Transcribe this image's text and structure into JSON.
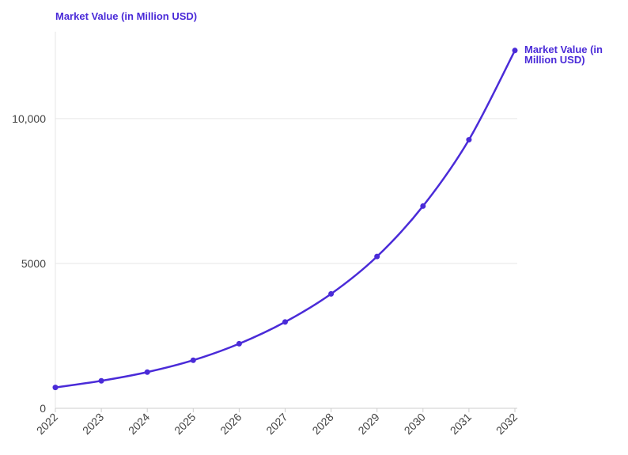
{
  "chart_data": {
    "type": "line",
    "title": "",
    "xlabel": "",
    "ylabel": "",
    "series_title": "Market Value (in Million USD)",
    "end_label_lines": [
      "Market Value (in",
      "Million USD)"
    ],
    "x": [
      "2022",
      "2023",
      "2024",
      "2025",
      "2026",
      "2027",
      "2028",
      "2029",
      "2030",
      "2031",
      "2032"
    ],
    "series": [
      {
        "name": "Market Value (in Million USD)",
        "values": [
          720,
          950,
          1250,
          1660,
          2230,
          2980,
          3950,
          5240,
          6980,
          9270,
          12350
        ]
      }
    ],
    "ylim": [
      0,
      13000
    ],
    "yticks": [
      0,
      5000,
      10000
    ],
    "ytick_labels": [
      "0",
      "5000",
      "10,000"
    ],
    "grid": true,
    "legend": "none",
    "colors": {
      "line": "#4a2bd8",
      "grid": "#e6e6e6",
      "axis": "#cccccc",
      "text": "#444444"
    }
  }
}
